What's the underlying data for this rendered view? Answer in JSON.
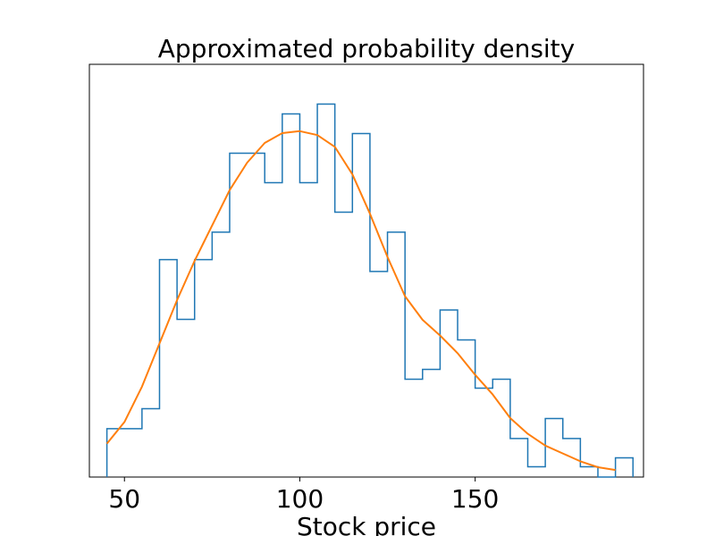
{
  "chart_data": {
    "type": "histogram",
    "title": "Approximated probability density",
    "xlabel": "Stock price",
    "ylabel": "",
    "xlim": [
      40,
      198
    ],
    "ylim": [
      0,
      1
    ],
    "xticks": [
      50,
      100,
      150
    ],
    "show_y_ticks": false,
    "grid": false,
    "histogram": {
      "color": "#1f77b4",
      "bin_edges": [
        45,
        50,
        55,
        60,
        65,
        70,
        75,
        80,
        85,
        90,
        95,
        100,
        105,
        110,
        115,
        120,
        125,
        130,
        135,
        140,
        145,
        150,
        155,
        160,
        165,
        170,
        175,
        180,
        185,
        190
      ],
      "density": [
        0.123,
        0.123,
        0.174,
        0.553,
        0.401,
        0.553,
        0.623,
        0.824,
        0.824,
        0.749,
        0.924,
        0.749,
        0.949,
        0.674,
        0.874,
        0.523,
        0.623,
        0.249,
        0.274,
        0.425,
        0.349,
        0.226,
        0.249,
        0.098,
        0.026,
        0.149,
        0.098,
        0.026,
        0.0,
        0.049
      ]
    },
    "density_curve": {
      "color": "#ff7f0e",
      "x": [
        45,
        50,
        55,
        60,
        65,
        70,
        75,
        80,
        85,
        90,
        95,
        100,
        105,
        110,
        115,
        120,
        125,
        130,
        135,
        140,
        145,
        150,
        155,
        160,
        165,
        170,
        175,
        180,
        185,
        190
      ],
      "y": [
        0.085,
        0.14,
        0.23,
        0.34,
        0.45,
        0.55,
        0.64,
        0.73,
        0.8,
        0.85,
        0.875,
        0.88,
        0.87,
        0.84,
        0.77,
        0.67,
        0.56,
        0.46,
        0.4,
        0.36,
        0.315,
        0.26,
        0.21,
        0.15,
        0.11,
        0.08,
        0.06,
        0.04,
        0.025,
        0.018
      ]
    }
  }
}
